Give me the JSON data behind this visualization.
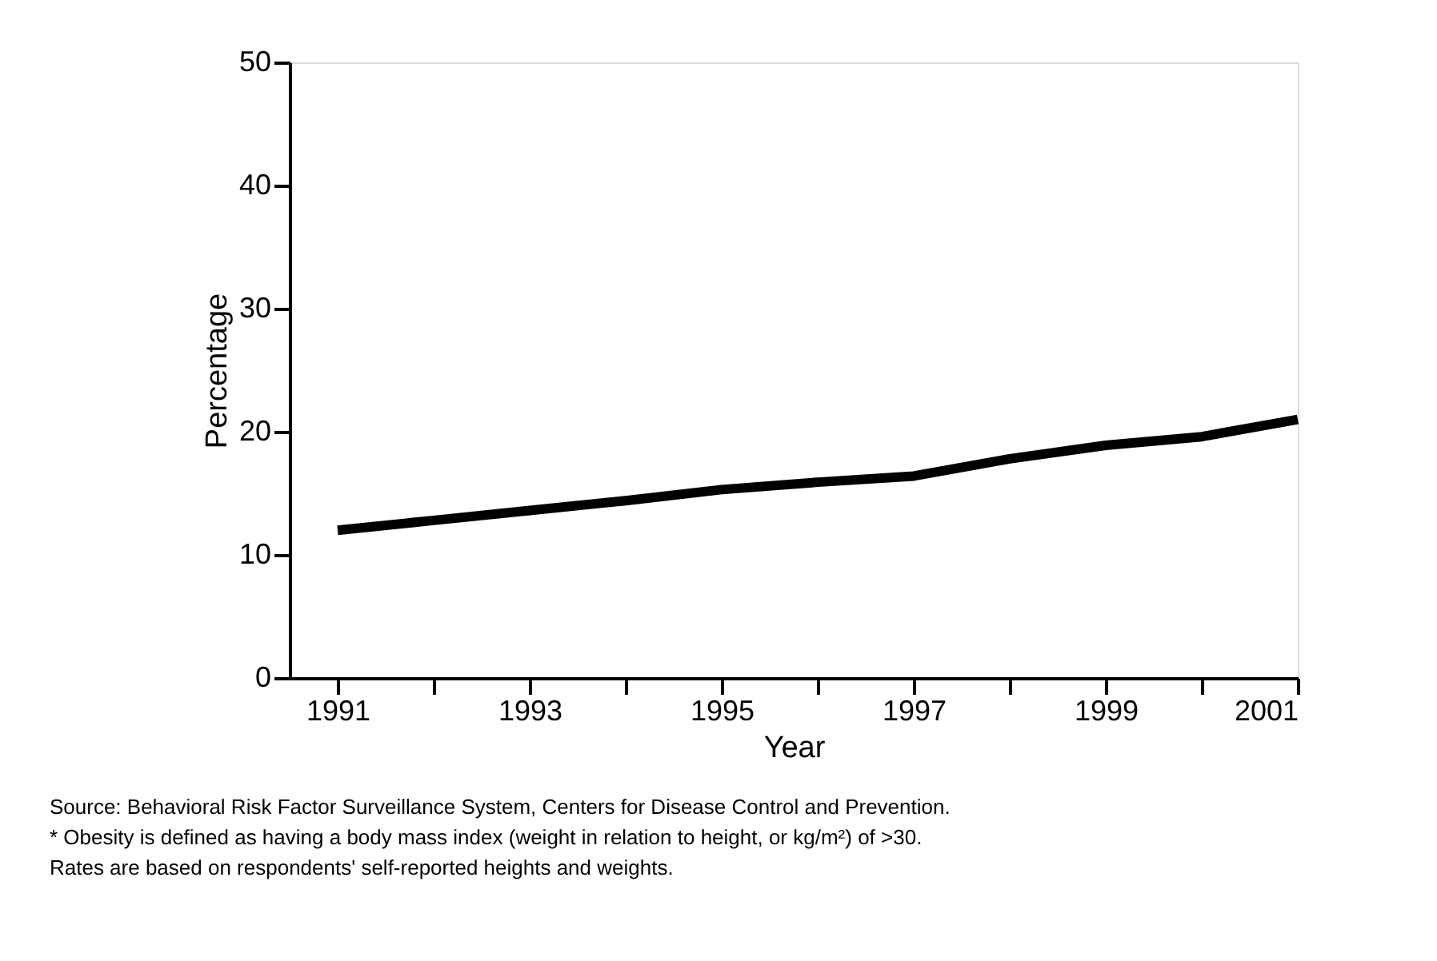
{
  "chart_data": {
    "type": "line",
    "xlabel": "Year",
    "ylabel": "Percentage",
    "x": [
      1991,
      1992,
      1993,
      1994,
      1995,
      1996,
      1997,
      1998,
      1999,
      2000,
      2001
    ],
    "series": [
      {
        "color": "#000000",
        "values": [
          12.0,
          12.8,
          13.6,
          14.4,
          15.3,
          15.9,
          16.4,
          17.8,
          18.9,
          19.6,
          21.0
        ]
      }
    ],
    "xlim": [
      1990.5,
      2001
    ],
    "xticks": [
      1991,
      {
        "value": 1992,
        "label": null
      },
      1993,
      {
        "value": 1994,
        "label": null
      },
      1995,
      {
        "value": 1996,
        "label": null
      },
      1997,
      {
        "value": 1998,
        "label": null
      },
      1999,
      {
        "value": 2000,
        "label": null
      },
      2001
    ],
    "ylim": [
      0,
      50
    ],
    "yticks": [
      0,
      10,
      20,
      30,
      40,
      50
    ],
    "grid": false,
    "legend": false,
    "marker": "none",
    "line_style": "solid",
    "annotations": [
      "Source: Behavioral Risk Factor Surveillance System, Centers for Disease Control and Prevention.",
      "* Obesity is defined as having a body mass index (weight in relation to height, or kg/m²) of >30.",
      "Rates are based on respondents' self-reported heights and weights."
    ]
  }
}
